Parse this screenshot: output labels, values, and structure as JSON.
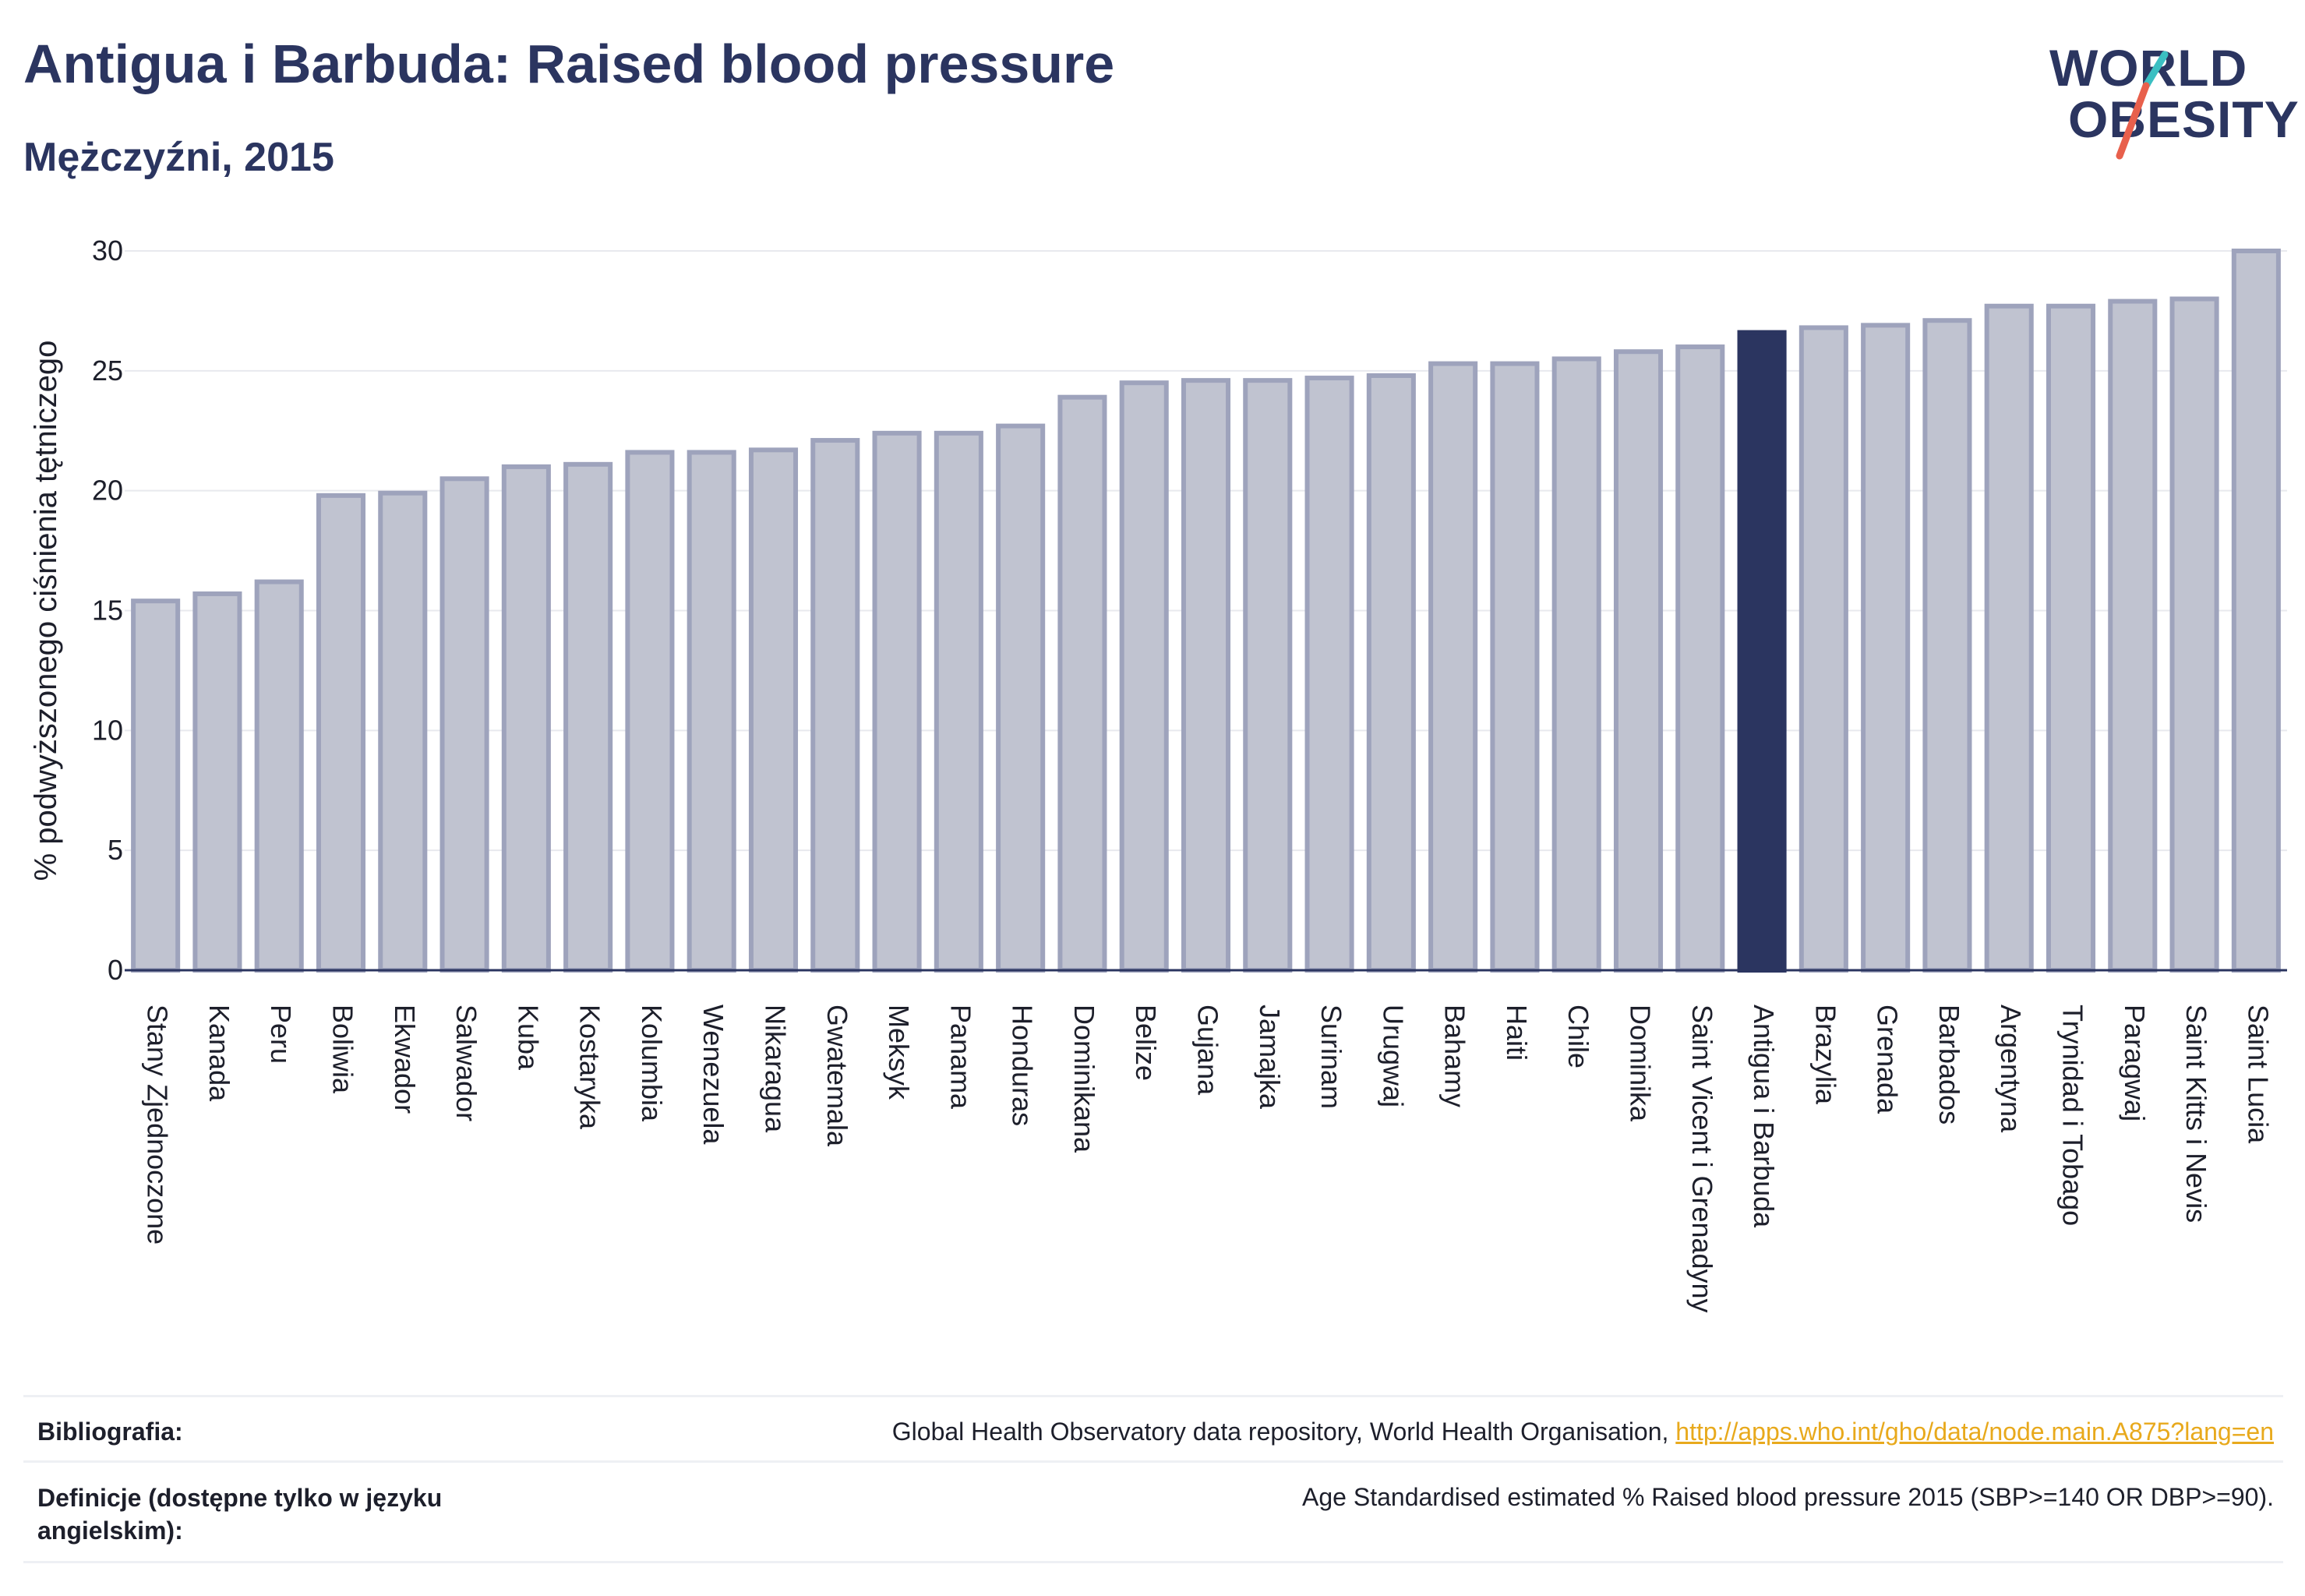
{
  "header": {
    "title": "Antigua i Barbuda: Raised blood pressure",
    "subtitle": "Mężczyźni, 2015"
  },
  "logo": {
    "line1": "WORLD",
    "line2": "OBESITY",
    "colors": {
      "text": "#2b3560",
      "slash_top": "#3bbfc2",
      "slash_bottom": "#e8604c"
    }
  },
  "chart_data": {
    "type": "bar",
    "ylabel": "% podwyższonego ciśnienia tętniczego",
    "xlabel": "",
    "ylim": [
      0,
      30
    ],
    "yticks": [
      0,
      5,
      10,
      15,
      20,
      25,
      30
    ],
    "grid": true,
    "highlight": "Antigua i Barbuda",
    "colors": {
      "bar": "#c0c3d0",
      "bar_edge": "#9ea3bc",
      "highlight": "#2b3560",
      "grid": "#e8e9ee",
      "axis": "#2b3560"
    },
    "categories": [
      "Stany Zjednoczone",
      "Kanada",
      "Peru",
      "Boliwia",
      "Ekwador",
      "Salwador",
      "Kuba",
      "Kostaryka",
      "Kolumbia",
      "Wenezuela",
      "Nikaragua",
      "Gwatemala",
      "Meksyk",
      "Panama",
      "Honduras",
      "Dominikana",
      "Belize",
      "Gujana",
      "Jamajka",
      "Surinam",
      "Urugwaj",
      "Bahamy",
      "Haiti",
      "Chile",
      "Dominika",
      "Saint Vicent i Grenadyny",
      "Antigua i Barbuda",
      "Brazylia",
      "Grenada",
      "Barbados",
      "Argentyna",
      "Trynidad i Tobago",
      "Paragwaj",
      "Saint Kitts i Nevis",
      "Saint Lucia"
    ],
    "values": [
      15.4,
      15.7,
      16.2,
      19.8,
      19.9,
      20.5,
      21.0,
      21.1,
      21.6,
      21.6,
      21.7,
      22.1,
      22.4,
      22.4,
      22.7,
      23.9,
      24.5,
      24.6,
      24.6,
      24.7,
      24.8,
      25.3,
      25.3,
      25.5,
      25.8,
      26.0,
      26.6,
      26.8,
      26.9,
      27.1,
      27.7,
      27.7,
      27.9,
      28.0,
      30.0
    ]
  },
  "footer": {
    "bibliography_label": "Bibliografia:",
    "bibliography_text": "Global Health Observatory data repository, World Health Organisation, ",
    "bibliography_link": "http://apps.who.int/gho/data/node.main.A875?lang=en",
    "definitions_label_line1": "Definicje (dostępne tylko w języku",
    "definitions_label_line2": "angielskim):",
    "definitions_text": "Age Standardised estimated % Raised blood pressure 2015 (SBP>=140 OR DBP>=90)."
  }
}
